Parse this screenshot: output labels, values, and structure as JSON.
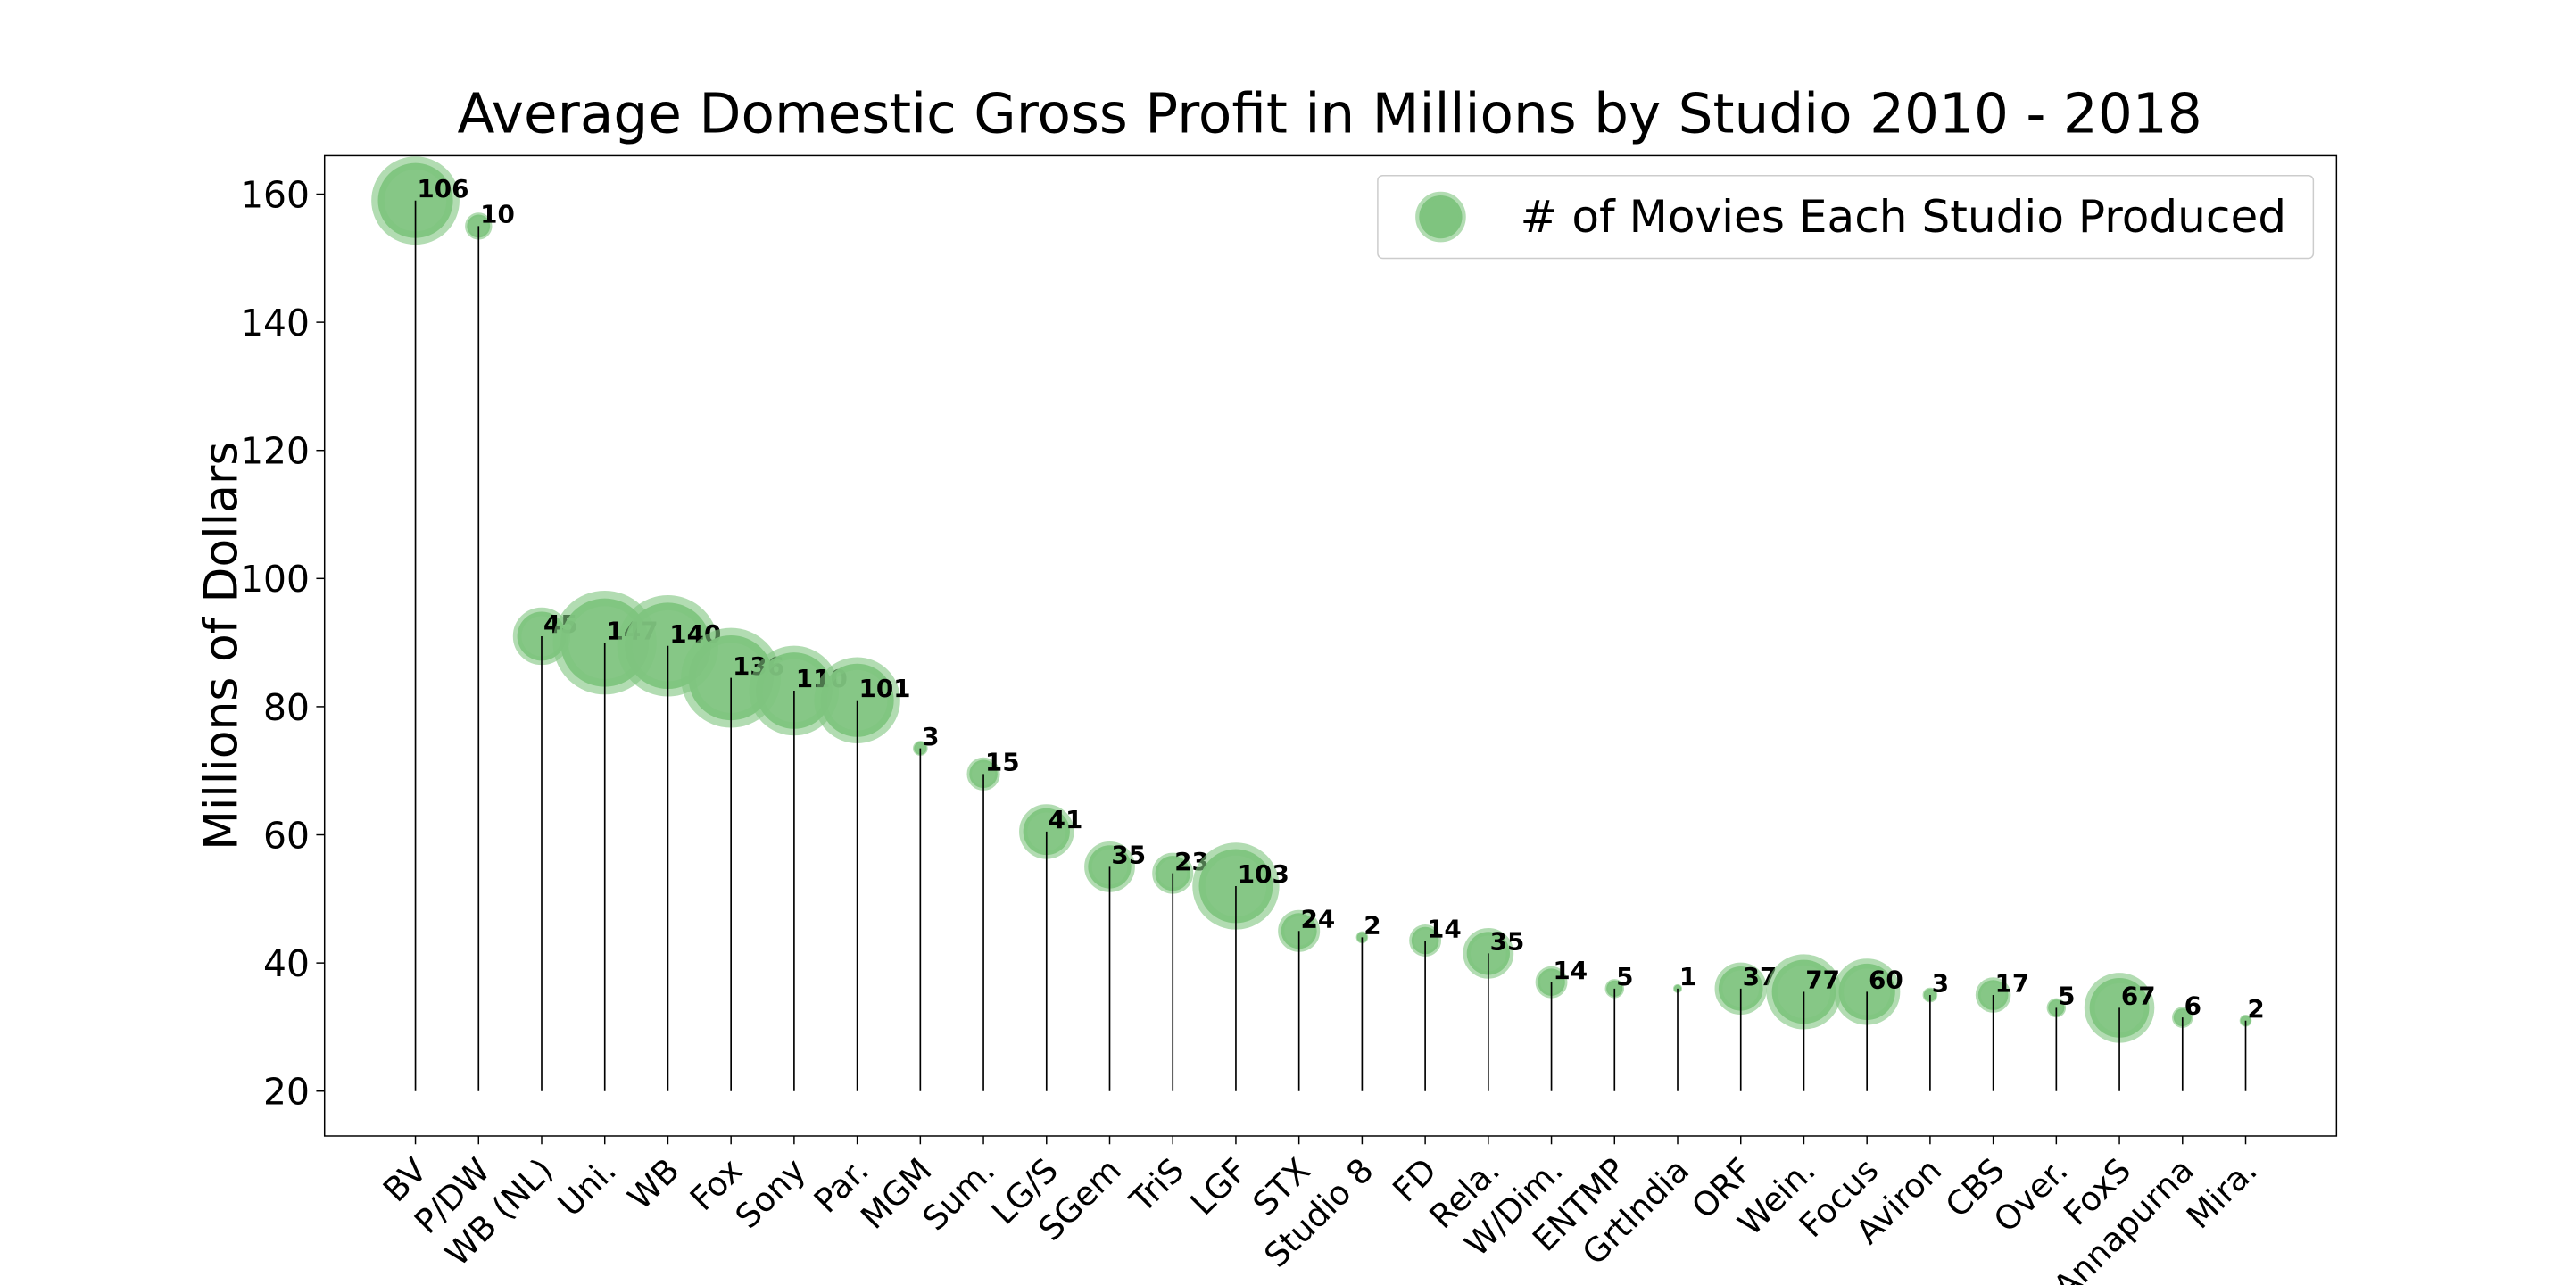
{
  "chart_data": {
    "type": "bubble",
    "title": "Average Domestic Gross Profit in Millions by Studio 2010 - 2018",
    "y_label": "Millions of Dollars",
    "categories": [
      "BV",
      "P/DW",
      "WB (NL)",
      "Uni.",
      "WB",
      "Fox",
      "Sony",
      "Par.",
      "MGM",
      "Sum.",
      "LG/S",
      "SGem",
      "TriS",
      "LGF",
      "STX",
      "Studio 8",
      "FD",
      "Rela.",
      "W/Dim.",
      "ENTMP",
      "GrtIndia",
      "ORF",
      "Wein.",
      "Focus",
      "Aviron",
      "CBS",
      "Over.",
      "FoxS",
      "Annapurna",
      "Mira."
    ],
    "series": [
      {
        "name": "# of Movies Each Studio Produced",
        "color": "#7fc47f",
        "values": [
          159,
          155,
          91,
          90,
          89.5,
          84.5,
          82.5,
          81,
          73.5,
          69.5,
          60.5,
          55,
          54,
          52,
          45,
          44,
          43.5,
          41.5,
          37,
          36,
          36,
          36,
          35.5,
          35.5,
          35,
          35,
          33,
          33,
          31.5,
          31
        ],
        "sizes": [
          106,
          10,
          45,
          147,
          140,
          136,
          110,
          101,
          3,
          15,
          41,
          35,
          23,
          103,
          24,
          2,
          14,
          35,
          14,
          5,
          1,
          37,
          77,
          60,
          3,
          17,
          5,
          67,
          6,
          2
        ]
      }
    ],
    "ylim": [
      13,
      166
    ],
    "yticks": [
      20,
      40,
      60,
      80,
      100,
      120,
      140,
      160
    ],
    "grid": false,
    "legend": "upper right"
  }
}
